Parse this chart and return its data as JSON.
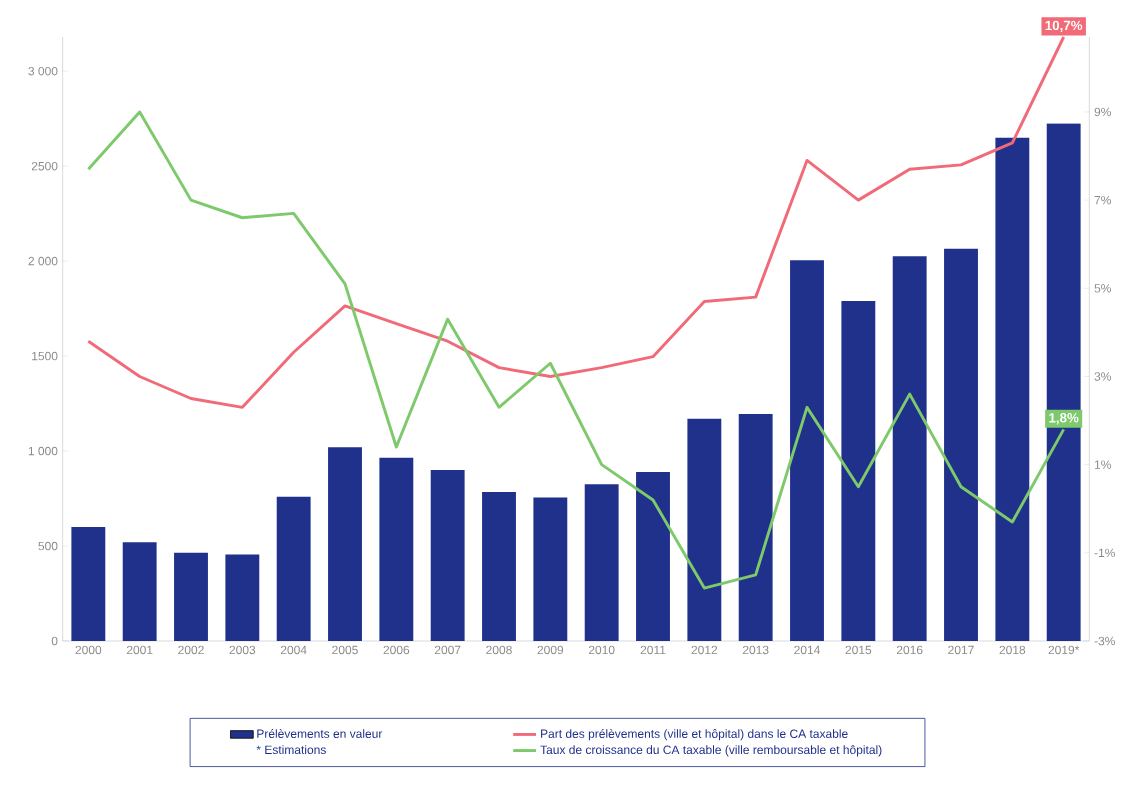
{
  "chart_data": {
    "type": "bar",
    "categories": [
      "2000",
      "2001",
      "2002",
      "2003",
      "2004",
      "2005",
      "2006",
      "2007",
      "2008",
      "2009",
      "2010",
      "2011",
      "2012",
      "2013",
      "2014",
      "2015",
      "2016",
      "2017",
      "2018",
      "2019*"
    ],
    "series": [
      {
        "name": "Prélèvements en valeur",
        "color": "#1f318a",
        "values": [
          600,
          520,
          465,
          455,
          760,
          1020,
          965,
          900,
          785,
          755,
          825,
          890,
          1170,
          1195,
          2005,
          1790,
          2025,
          2065,
          2650,
          2725
        ]
      },
      {
        "name": "Part des prélèvements (ville et hôpital) dans le CA taxable",
        "type": "line",
        "axis": "y2",
        "color": "#f06a78",
        "values": [
          3.8,
          3.0,
          2.5,
          2.3,
          3.55,
          4.6,
          4.2,
          3.8,
          3.2,
          3.0,
          3.2,
          3.45,
          4.7,
          4.8,
          7.9,
          7.0,
          7.7,
          7.8,
          8.3,
          10.7
        ],
        "value_labels": [
          null,
          null,
          null,
          null,
          null,
          null,
          null,
          null,
          null,
          null,
          null,
          null,
          null,
          null,
          null,
          null,
          null,
          null,
          null,
          "10,7%"
        ]
      },
      {
        "name": "Taux de croissance du CA taxable (ville remboursable et hôpital)",
        "type": "line",
        "axis": "y2",
        "color": "#7dc96b",
        "values": [
          7.7,
          9.0,
          7.0,
          6.6,
          6.7,
          5.1,
          1.4,
          4.3,
          2.3,
          3.3,
          1.0,
          0.2,
          -1.8,
          -1.5,
          2.3,
          0.5,
          2.6,
          0.5,
          -0.3,
          1.8
        ],
        "value_labels": [
          null,
          null,
          null,
          null,
          null,
          null,
          null,
          null,
          null,
          null,
          null,
          null,
          null,
          null,
          null,
          null,
          null,
          null,
          null,
          "1,8%"
        ]
      }
    ],
    "ylim": [
      0,
      3180
    ],
    "yticks": [
      0,
      500,
      {
        "value": 1000,
        "label": "1 000"
      },
      1500,
      {
        "value": 2000,
        "label": "2 000"
      },
      2500,
      {
        "value": 3000,
        "label": "3 000"
      }
    ],
    "y2lim": [
      -3,
      10.7
    ],
    "y2ticks": [
      {
        "value": -3,
        "label": "-3%"
      },
      {
        "value": -1,
        "label": "-1%"
      },
      {
        "value": 1,
        "label": "1%"
      },
      {
        "value": 3,
        "label": "3%"
      },
      {
        "value": 5,
        "label": "5%"
      },
      {
        "value": 7,
        "label": "7%"
      },
      {
        "value": 9,
        "label": "9%"
      }
    ],
    "marker": "none",
    "legend": "bottom",
    "annotations": [
      "* Estimations"
    ]
  }
}
